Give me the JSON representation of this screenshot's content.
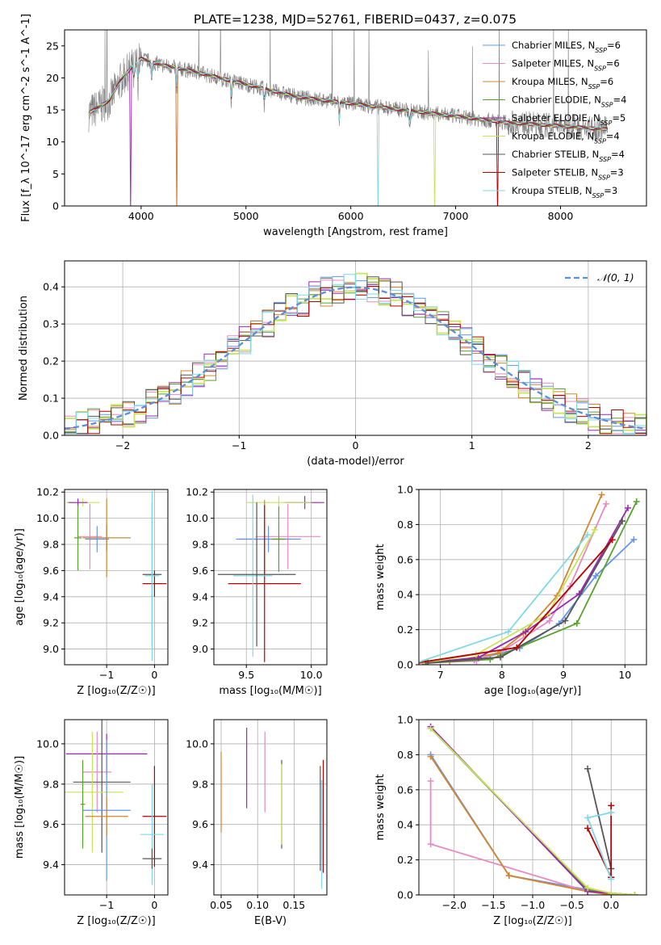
{
  "figure": {
    "title": "PLATE=1238, MJD=52761, FIBERID=0437, z=0.075"
  },
  "models": [
    {
      "name": "Chabrier MILES",
      "nssp": "6",
      "color": "#6495ed"
    },
    {
      "name": "Salpeter MILES",
      "nssp": "6",
      "color": "#e78ac3"
    },
    {
      "name": "Kroupa MILES",
      "nssp": "6",
      "color": "#d2872d"
    },
    {
      "name": "Chabrier ELODIE",
      "nssp": "4",
      "color": "#5aa02c"
    },
    {
      "name": "Salpeter ELODIE",
      "nssp": "5",
      "color": "#9b27b0"
    },
    {
      "name": "Kroupa ELODIE",
      "nssp": "4",
      "color": "#c8e35a"
    },
    {
      "name": "Chabrier STELIB",
      "nssp": "4",
      "color": "#555555"
    },
    {
      "name": "Salpeter STELIB",
      "nssp": "3",
      "color": "#b40000"
    },
    {
      "name": "Kroupa STELIB",
      "nssp": "3",
      "color": "#7fd8e8"
    }
  ],
  "colors": {
    "data_spectrum": "#808080",
    "normal_curve": "#5b8fd9",
    "grid": "#b0b0b0"
  },
  "chart_data": [
    {
      "id": "spectrum",
      "type": "line",
      "xlabel": "wavelength [Angstrom, rest frame]",
      "ylabel": "Flux [f_λ 10^-17 erg cm^-2 s^-1 A^-1]",
      "xlim": [
        3270,
        8820
      ],
      "ylim": [
        0,
        27.5
      ],
      "xticks": [
        4000,
        5000,
        6000,
        7000,
        8000
      ],
      "yticks": [
        0,
        5,
        10,
        15,
        20,
        25
      ],
      "grid": false,
      "legend": "top-right",
      "legend_suffix": "N_SSP",
      "continuum": [
        [
          3500,
          14.5
        ],
        [
          3700,
          16.5
        ],
        [
          3800,
          19.5
        ],
        [
          3900,
          21.5
        ],
        [
          4000,
          23
        ],
        [
          4200,
          22
        ],
        [
          4500,
          21
        ],
        [
          5000,
          19
        ],
        [
          5500,
          17
        ],
        [
          6000,
          16
        ],
        [
          6500,
          15
        ],
        [
          7000,
          14
        ],
        [
          7500,
          13
        ],
        [
          8000,
          12.5
        ],
        [
          8400,
          12
        ]
      ]
    },
    {
      "id": "residuals",
      "type": "line",
      "xlabel": "(data-model)/error",
      "ylabel": "Normed distribution",
      "xlim": [
        -2.5,
        2.5
      ],
      "ylim": [
        0,
        0.47
      ],
      "xticks": [
        -2,
        -1,
        0,
        1,
        2
      ],
      "yticks": [
        0,
        0.1,
        0.2,
        0.3,
        0.4
      ],
      "grid": true,
      "legend": "top-right",
      "normal_label": "𝒩(0, 1)"
    },
    {
      "id": "age-vs-Z",
      "type": "scatter",
      "xlabel": "Z [log₁₀(Z/Z☉)]",
      "ylabel": "age  [log₁₀(age/yr)]",
      "xlim": [
        -1.88,
        0.28
      ],
      "ylim": [
        8.88,
        10.22
      ],
      "xticks": [
        -1,
        0
      ],
      "yticks": [
        9.0,
        9.2,
        9.4,
        9.6,
        9.8,
        10.0,
        10.2
      ],
      "grid": true,
      "points": [
        {
          "x": -1.5,
          "y": 10.12,
          "xerr": 0.35,
          "yerr": 0.03,
          "model": 5
        },
        {
          "x": -1.6,
          "y": 10.12,
          "xerr": 0.2,
          "yerr": 0.03,
          "model": 4
        },
        {
          "x": -1.35,
          "y": 9.86,
          "xerr": 0.25,
          "yerr": 0.25,
          "model": 1
        },
        {
          "x": -1.2,
          "y": 9.84,
          "xerr": 0.25,
          "yerr": 0.1,
          "model": 0
        },
        {
          "x": -1.0,
          "y": 9.85,
          "xerr": 0.5,
          "yerr": 0.1,
          "model": 6
        },
        {
          "x": -1.0,
          "y": 9.85,
          "xerr": 0.5,
          "yerr": 0.3,
          "model": 2
        },
        {
          "x": -1.6,
          "y": 9.85,
          "xerr": 0.08,
          "yerr": 0.25,
          "model": 3
        },
        {
          "x": -0.05,
          "y": 9.57,
          "xerr": 0.2,
          "yerr": 0.55,
          "model": 6
        },
        {
          "x": 0.0,
          "y": 9.5,
          "xerr": 0.25,
          "yerr": 0.1,
          "model": 7
        },
        {
          "x": -0.05,
          "y": 9.56,
          "xerr": 0.15,
          "yerr": 0.65,
          "model": 8
        }
      ]
    },
    {
      "id": "age-vs-mass",
      "type": "scatter",
      "xlabel": "mass [log₁₀(M/M☉)]",
      "ylabel": "",
      "xlim": [
        9.25,
        10.12
      ],
      "ylim": [
        8.88,
        10.22
      ],
      "xticks": [
        9.5,
        10.0
      ],
      "yticks": [
        9.0,
        9.2,
        9.4,
        9.6,
        9.8,
        10.0,
        10.2
      ],
      "grid": true,
      "points": [
        {
          "x": 9.95,
          "y": 10.12,
          "xerr": 0.15,
          "yerr": 0.05,
          "model": 4
        },
        {
          "x": 9.75,
          "y": 10.12,
          "xerr": 0.25,
          "yerr": 0.05,
          "model": 5
        },
        {
          "x": 9.82,
          "y": 9.86,
          "xerr": 0.25,
          "yerr": 0.25,
          "model": 1
        },
        {
          "x": 9.64,
          "y": 9.84,
          "xerr": 0.2,
          "yerr": 0.3,
          "model": 2
        },
        {
          "x": 9.67,
          "y": 9.84,
          "xerr": 0.25,
          "yerr": 0.1,
          "model": 0
        },
        {
          "x": 9.75,
          "y": 9.84,
          "xerr": 0.05,
          "yerr": 0.25,
          "model": 3
        },
        {
          "x": 9.64,
          "y": 9.5,
          "xerr": 0.28,
          "yerr": 0.6,
          "model": 7
        },
        {
          "x": 9.55,
          "y": 9.56,
          "xerr": 0.15,
          "yerr": 0.62,
          "model": 8
        },
        {
          "x": 9.58,
          "y": 9.57,
          "xerr": 0.3,
          "yerr": 0.55,
          "model": 6
        }
      ]
    },
    {
      "id": "weight-vs-age",
      "type": "line",
      "xlabel": "age  [log₁₀(age/yr)]",
      "ylabel": "mass weight",
      "xlim": [
        6.65,
        10.35
      ],
      "ylim": [
        0,
        1.0
      ],
      "xticks": [
        7,
        8,
        9,
        10
      ],
      "yticks": [
        0,
        0.2,
        0.4,
        0.6,
        0.8,
        1.0
      ],
      "grid": true
    },
    {
      "id": "mass-vs-Z",
      "type": "scatter",
      "xlabel": "Z [log₁₀(Z/Z☉)]",
      "ylabel": "mass [log₁₀(M/M☉)]",
      "xlim": [
        -1.88,
        0.28
      ],
      "ylim": [
        9.25,
        10.12
      ],
      "xticks": [
        -1,
        0
      ],
      "yticks": [
        9.4,
        9.6,
        9.8,
        10.0
      ],
      "grid": true,
      "points": [
        {
          "x": -1.0,
          "y": 9.95,
          "xerr": 0.85,
          "yerr": 0.1,
          "model": 4
        },
        {
          "x": -1.2,
          "y": 9.86,
          "xerr": 0.3,
          "yerr": 0.2,
          "model": 1
        },
        {
          "x": -1.1,
          "y": 9.81,
          "xerr": 0.6,
          "yerr": 0.35,
          "model": 6
        },
        {
          "x": -1.3,
          "y": 9.76,
          "xerr": 0.65,
          "yerr": 0.3,
          "model": 5
        },
        {
          "x": -1.0,
          "y": 9.67,
          "xerr": 0.5,
          "yerr": 0.35,
          "model": 0
        },
        {
          "x": -1.0,
          "y": 9.64,
          "xerr": 0.45,
          "yerr": 0.1,
          "model": 2
        },
        {
          "x": -1.5,
          "y": 9.7,
          "xerr": 0.05,
          "yerr": 0.22,
          "model": 3
        },
        {
          "x": 0.0,
          "y": 9.64,
          "xerr": 0.25,
          "yerr": 0.25,
          "model": 7
        },
        {
          "x": -0.05,
          "y": 9.55,
          "xerr": 0.25,
          "yerr": 0.25,
          "model": 8
        },
        {
          "x": -0.05,
          "y": 9.43,
          "xerr": 0.2,
          "yerr": 0.05,
          "model": 6
        }
      ]
    },
    {
      "id": "mass-vs-ebv",
      "type": "scatter",
      "xlabel": "E(B-V)",
      "ylabel": "",
      "xlim": [
        0.04,
        0.195
      ],
      "ylim": [
        9.25,
        10.12
      ],
      "xticks": [
        0.05,
        0.1,
        0.15
      ],
      "yticks": [
        9.4,
        9.6,
        9.8,
        10.0
      ],
      "grid": true,
      "points": [
        {
          "x": 0.05,
          "y": 9.76,
          "yerr": 0.2,
          "model": 2
        },
        {
          "x": 0.085,
          "y": 9.88,
          "yerr": 0.2,
          "model": 4
        },
        {
          "x": 0.11,
          "y": 9.86,
          "yerr": 0.2,
          "model": 1
        },
        {
          "x": 0.133,
          "y": 9.7,
          "yerr": 0.22,
          "model": 6
        },
        {
          "x": 0.133,
          "y": 9.7,
          "yerr": 0.2,
          "model": 5
        },
        {
          "x": 0.186,
          "y": 9.63,
          "yerr": 0.26,
          "model": 6
        },
        {
          "x": 0.188,
          "y": 9.55,
          "yerr": 0.27,
          "model": 8
        },
        {
          "x": 0.19,
          "y": 9.64,
          "yerr": 0.28,
          "model": 7
        }
      ]
    },
    {
      "id": "weight-vs-Z",
      "type": "line",
      "xlabel": "Z [log₁₀(Z/Z☉)]",
      "ylabel": "mass weight",
      "xlim": [
        -2.45,
        0.45
      ],
      "ylim": [
        0,
        1.0
      ],
      "xticks": [
        -2.0,
        -1.5,
        -1.0,
        -0.5,
        0.0
      ],
      "yticks": [
        0,
        0.2,
        0.4,
        0.6,
        0.8,
        1.0
      ],
      "grid": true
    }
  ]
}
